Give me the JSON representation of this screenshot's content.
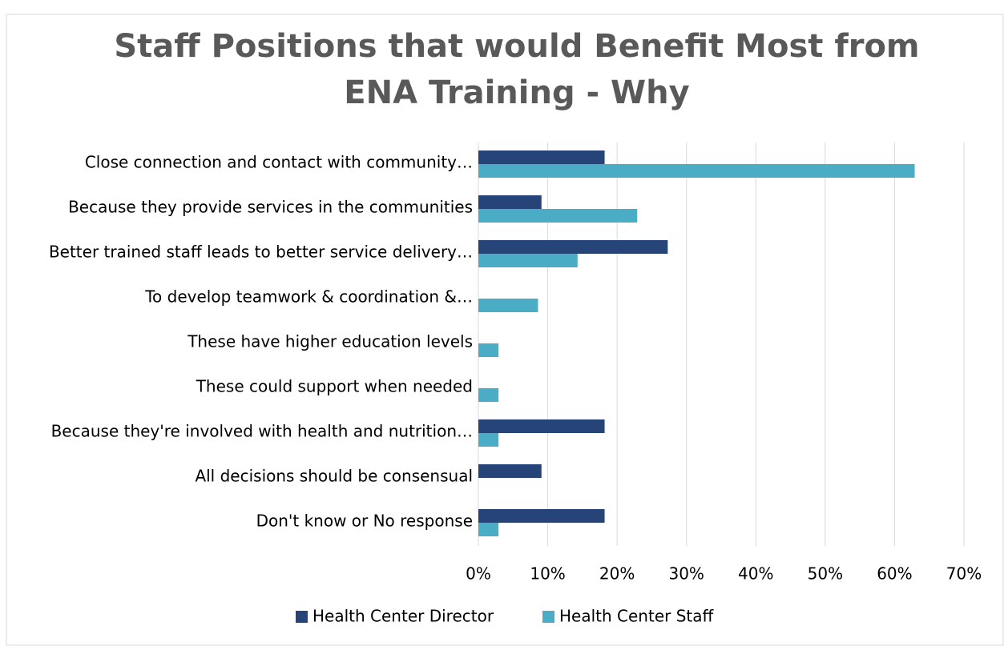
{
  "chart_data": {
    "type": "bar",
    "orientation": "horizontal",
    "title": [
      "Staff Positions that would Benefit Most from",
      "ENA Training - Why"
    ],
    "categories": [
      "Close connection and contact with community…",
      "Because they provide services in the communities",
      "Better trained staff leads to better service delivery…",
      "To develop teamwork & coordination &…",
      "These have higher education levels",
      "These could support when needed",
      "Because they're involved with health and nutrition…",
      "All decisions should be consensual",
      "Don't know or No response"
    ],
    "series": [
      {
        "name": "Health Center Director",
        "color": "#264478",
        "values": [
          18.2,
          9.1,
          27.3,
          0,
          0,
          0,
          18.2,
          9.1,
          18.2
        ]
      },
      {
        "name": "Health Center Staff",
        "color": "#4bacc6",
        "values": [
          62.9,
          22.9,
          14.3,
          8.6,
          2.9,
          2.9,
          2.9,
          0,
          2.9
        ]
      }
    ],
    "xlim": [
      0,
      70
    ],
    "xticks": [
      {
        "value": 0,
        "label": "0%"
      },
      {
        "value": 10,
        "label": "10%"
      },
      {
        "value": 20,
        "label": "20%"
      },
      {
        "value": 30,
        "label": "30%"
      },
      {
        "value": 40,
        "label": "40%"
      },
      {
        "value": 50,
        "label": "50%"
      },
      {
        "value": 60,
        "label": "60%"
      },
      {
        "value": 70,
        "label": "70%"
      }
    ],
    "grid": true,
    "legend": "bottom"
  }
}
